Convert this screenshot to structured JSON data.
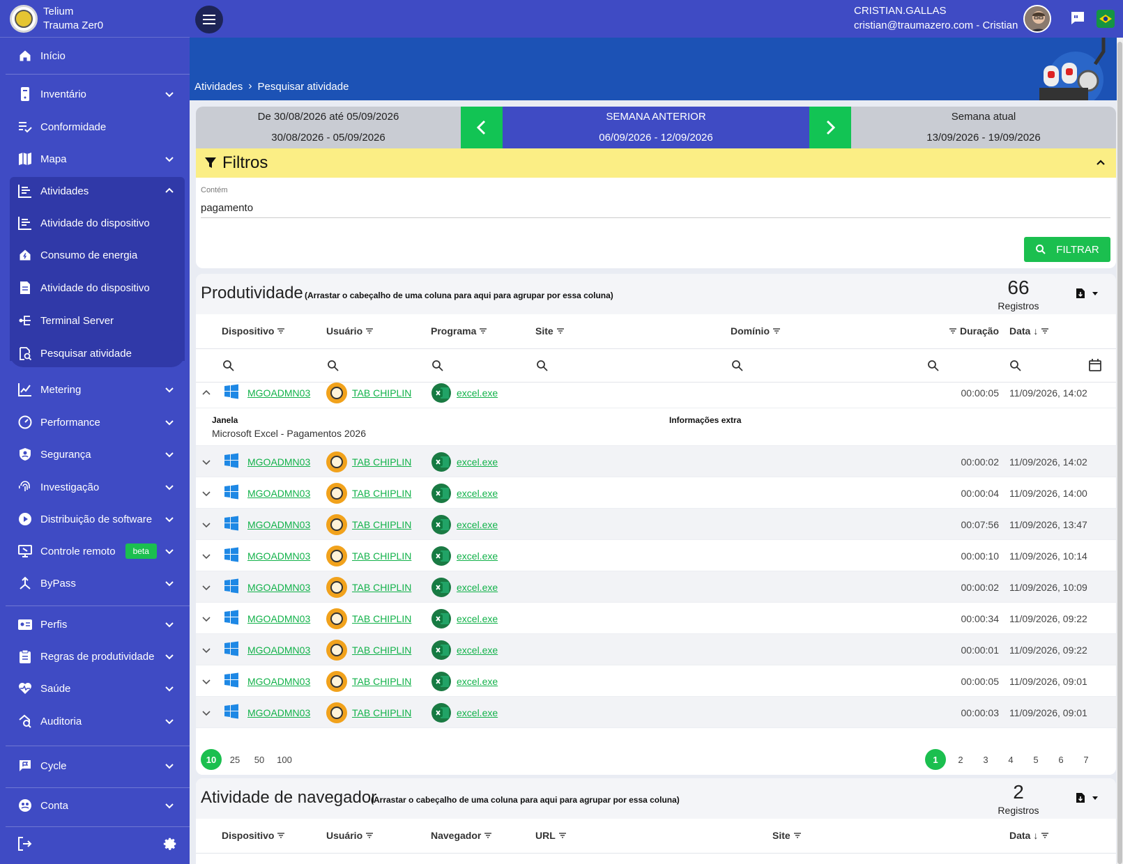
{
  "brand": {
    "line1": "Telium",
    "line2": "Trauma Zer0"
  },
  "topbar": {
    "user_name": "CRISTIAN.GALLAS",
    "user_mail": "cristian@traumazero.com - Cristian"
  },
  "breadcrumb": {
    "parent": "Atividades",
    "current": "Pesquisar atividade"
  },
  "sidebar": {
    "inicio": "Início",
    "inventario": "Inventário",
    "conformidade": "Conformidade",
    "mapa": "Mapa",
    "atividades": "Atividades",
    "sub": {
      "atividade_dispositivo": "Atividade do dispositivo",
      "consumo": "Consumo de energia",
      "atividade_dispositivo2": "Atividade do dispositivo",
      "terminal": "Terminal Server",
      "pesquisar": "Pesquisar atividade"
    },
    "metering": "Metering",
    "performance": "Performance",
    "seguranca": "Segurança",
    "investigacao": "Investigação",
    "distribuicao": "Distribuição de software",
    "controle": "Controle remoto",
    "beta": "beta",
    "bypass": "ByPass",
    "perfis": "Perfis",
    "regras": "Regras de produtividade",
    "saude": "Saúde",
    "auditoria": "Auditoria",
    "cycle": "Cycle",
    "conta": "Conta"
  },
  "week": {
    "prev": {
      "line1": "De 30/08/2026 até 05/09/2026",
      "line2": "30/08/2026 - 05/09/2026"
    },
    "current": {
      "line1": "SEMANA ANTERIOR",
      "line2": "06/09/2026  -  12/09/2026"
    },
    "next": {
      "line1": "Semana atual",
      "line2": "13/09/2026 - 19/09/2026"
    }
  },
  "filters": {
    "title": "Filtros",
    "label": "Contém",
    "value": "pagamento",
    "button": "FILTRAR"
  },
  "prod": {
    "title": "Produtividade",
    "hint": "(Arrastar o cabeçalho de uma coluna para aqui para agrupar por essa coluna)",
    "count": "66",
    "count_label": "Registros",
    "columns": {
      "dispositivo": "Dispositivo",
      "usuario": "Usuário",
      "programa": "Programa",
      "site": "Site",
      "dominio": "Domínio",
      "duracao": "Duração",
      "data": "Data"
    },
    "detail": {
      "janela_label": "Janela",
      "janela_value": "Microsoft Excel - Pagamentos 2026",
      "extra_label": "Informações extra"
    },
    "rows": [
      {
        "device": "MGOADMN03",
        "user": "TAB CHIPLIN",
        "program": "excel.exe",
        "duration": "00:00:05",
        "date": "11/09/2026, 14:02"
      },
      {
        "device": "MGOADMN03",
        "user": "TAB CHIPLIN",
        "program": "excel.exe",
        "duration": "00:00:02",
        "date": "11/09/2026, 14:02"
      },
      {
        "device": "MGOADMN03",
        "user": "TAB CHIPLIN",
        "program": "excel.exe",
        "duration": "00:00:04",
        "date": "11/09/2026, 14:00"
      },
      {
        "device": "MGOADMN03",
        "user": "TAB CHIPLIN",
        "program": "excel.exe",
        "duration": "00:07:56",
        "date": "11/09/2026, 13:47"
      },
      {
        "device": "MGOADMN03",
        "user": "TAB CHIPLIN",
        "program": "excel.exe",
        "duration": "00:00:10",
        "date": "11/09/2026, 10:14"
      },
      {
        "device": "MGOADMN03",
        "user": "TAB CHIPLIN",
        "program": "excel.exe",
        "duration": "00:00:02",
        "date": "11/09/2026, 10:09"
      },
      {
        "device": "MGOADMN03",
        "user": "TAB CHIPLIN",
        "program": "excel.exe",
        "duration": "00:00:34",
        "date": "11/09/2026, 09:22"
      },
      {
        "device": "MGOADMN03",
        "user": "TAB CHIPLIN",
        "program": "excel.exe",
        "duration": "00:00:01",
        "date": "11/09/2026, 09:22"
      },
      {
        "device": "MGOADMN03",
        "user": "TAB CHIPLIN",
        "program": "excel.exe",
        "duration": "00:00:05",
        "date": "11/09/2026, 09:01"
      },
      {
        "device": "MGOADMN03",
        "user": "TAB CHIPLIN",
        "program": "excel.exe",
        "duration": "00:00:03",
        "date": "11/09/2026, 09:01"
      }
    ],
    "page_sizes": [
      "10",
      "25",
      "50",
      "100"
    ],
    "pages": [
      "1",
      "2",
      "3",
      "4",
      "5",
      "6",
      "7"
    ]
  },
  "nav": {
    "title": "Atividade de navegador",
    "hint": "(Arrastar o cabeçalho de uma coluna para aqui para agrupar por essa coluna)",
    "count": "2",
    "count_label": "Registros",
    "columns": {
      "dispositivo": "Dispositivo",
      "usuario": "Usuário",
      "navegador": "Navegador",
      "url": "URL",
      "site": "Site",
      "data": "Data"
    }
  },
  "colors": {
    "sidebar": "#3f4bc4",
    "accent": "#1bbf4f",
    "band": "#1c52b5",
    "filter_bar": "#fbee85"
  }
}
